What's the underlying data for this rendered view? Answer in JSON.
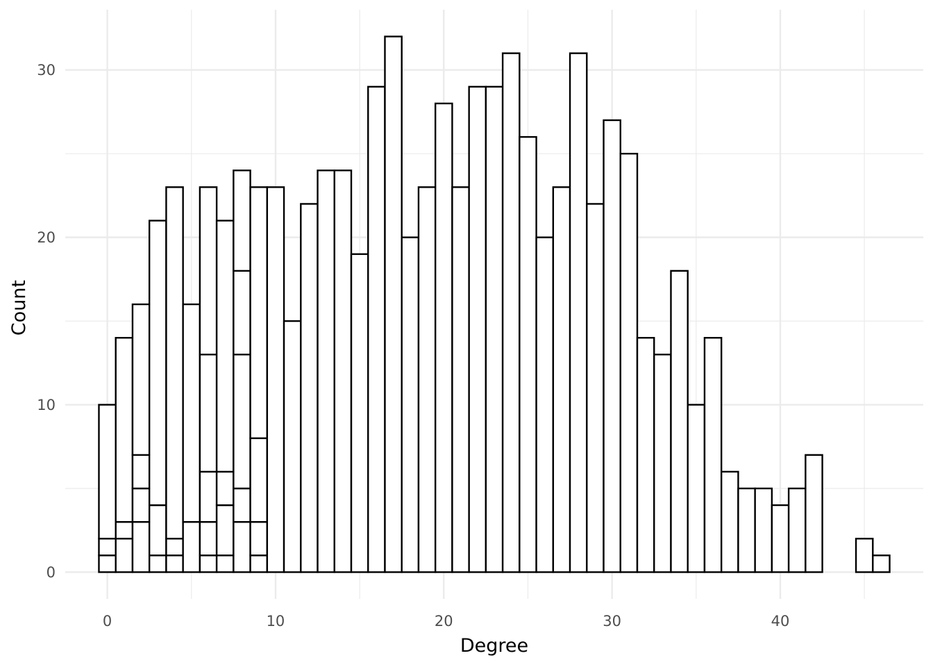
{
  "chart_data": {
    "type": "bar",
    "title": "",
    "xlabel": "Degree",
    "ylabel": "Count",
    "xlim": [
      -2.5,
      48.5
    ],
    "ylim": [
      -1.6,
      33.6
    ],
    "x_ticks": [
      0,
      10,
      20,
      30,
      40
    ],
    "y_ticks": [
      0,
      10,
      20,
      30
    ],
    "grid": true,
    "legend": "none",
    "bar_fill": "#ffffff",
    "bar_outline": "#000000",
    "grid_color": "#ebebeb",
    "bin_width": 1,
    "bars": [
      {
        "x": 0,
        "stack": [
          1,
          1,
          8
        ]
      },
      {
        "x": 1,
        "stack": [
          2,
          1,
          11
        ]
      },
      {
        "x": 2,
        "stack": [
          3,
          2,
          2,
          9
        ]
      },
      {
        "x": 3,
        "stack": [
          1,
          3,
          17
        ]
      },
      {
        "x": 4,
        "stack": [
          1,
          1,
          21
        ]
      },
      {
        "x": 5,
        "stack": [
          3,
          13
        ]
      },
      {
        "x": 6,
        "stack": [
          1,
          2,
          3,
          7,
          10
        ]
      },
      {
        "x": 7,
        "stack": [
          1,
          3,
          2,
          15
        ]
      },
      {
        "x": 8,
        "stack": [
          3,
          2,
          8,
          5,
          6
        ]
      },
      {
        "x": 9,
        "stack": [
          1,
          2,
          5,
          15
        ]
      },
      {
        "x": 10,
        "stack": [
          23
        ]
      },
      {
        "x": 11,
        "stack": [
          15
        ]
      },
      {
        "x": 12,
        "stack": [
          22
        ]
      },
      {
        "x": 13,
        "stack": [
          24
        ]
      },
      {
        "x": 14,
        "stack": [
          24
        ]
      },
      {
        "x": 15,
        "stack": [
          19
        ]
      },
      {
        "x": 16,
        "stack": [
          29
        ]
      },
      {
        "x": 17,
        "stack": [
          32
        ]
      },
      {
        "x": 18,
        "stack": [
          20
        ]
      },
      {
        "x": 19,
        "stack": [
          23
        ]
      },
      {
        "x": 20,
        "stack": [
          28
        ]
      },
      {
        "x": 21,
        "stack": [
          23
        ]
      },
      {
        "x": 22,
        "stack": [
          29
        ]
      },
      {
        "x": 23,
        "stack": [
          29
        ]
      },
      {
        "x": 24,
        "stack": [
          31
        ]
      },
      {
        "x": 25,
        "stack": [
          26
        ]
      },
      {
        "x": 26,
        "stack": [
          20
        ]
      },
      {
        "x": 27,
        "stack": [
          23
        ]
      },
      {
        "x": 28,
        "stack": [
          31
        ]
      },
      {
        "x": 29,
        "stack": [
          22
        ]
      },
      {
        "x": 30,
        "stack": [
          27
        ]
      },
      {
        "x": 31,
        "stack": [
          25
        ]
      },
      {
        "x": 32,
        "stack": [
          14
        ]
      },
      {
        "x": 33,
        "stack": [
          13
        ]
      },
      {
        "x": 34,
        "stack": [
          18
        ]
      },
      {
        "x": 35,
        "stack": [
          10
        ]
      },
      {
        "x": 36,
        "stack": [
          14
        ]
      },
      {
        "x": 37,
        "stack": [
          6
        ]
      },
      {
        "x": 38,
        "stack": [
          5
        ]
      },
      {
        "x": 39,
        "stack": [
          5
        ]
      },
      {
        "x": 40,
        "stack": [
          4
        ]
      },
      {
        "x": 41,
        "stack": [
          5
        ]
      },
      {
        "x": 42,
        "stack": [
          7
        ]
      },
      {
        "x": 45,
        "stack": [
          2
        ]
      },
      {
        "x": 46,
        "stack": [
          1
        ]
      }
    ]
  }
}
